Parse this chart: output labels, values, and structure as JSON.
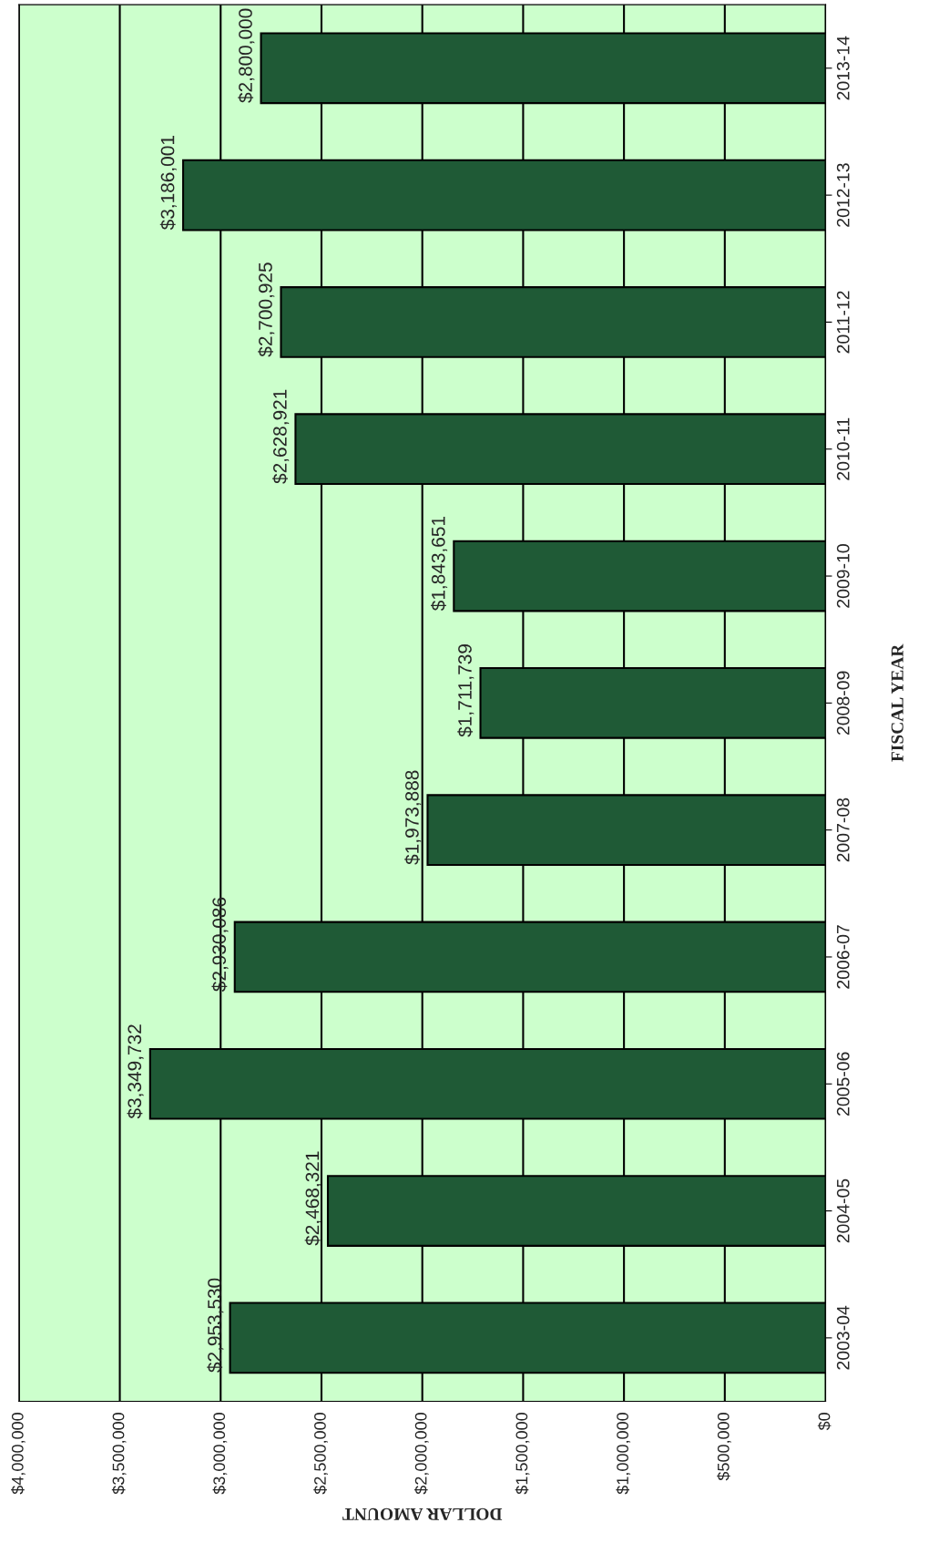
{
  "chart_data": {
    "type": "bar",
    "orientation": "horizontal",
    "xlabel": "DOLLAR AMOUNT",
    "ylabel": "FISCAL YEAR",
    "categories": [
      "2013-14",
      "2012-13",
      "2011-12",
      "2010-11",
      "2009-10",
      "2008-09",
      "2007-08",
      "2006-07",
      "2005-06",
      "2004-05",
      "2003-04"
    ],
    "values": [
      2800000,
      3186001,
      2700925,
      2628921,
      1843651,
      1711739,
      1973888,
      2930086,
      3349732,
      2468321,
      2953530
    ],
    "value_labels": [
      "$2,800,000",
      "$3,186,001",
      "$2,700,925",
      "$2,628,921",
      "$1,843,651",
      "$1,711,739",
      "$1,973,888",
      "$2,930,086",
      "$3,349,732",
      "$2,468,321",
      "$2,953,530"
    ],
    "color": "#1f5a36",
    "xlim": [
      4000000,
      0
    ],
    "xticks": [
      {
        "value": 4000000,
        "label": "$4,000,000"
      },
      {
        "value": 3500000,
        "label": "$3,500,000"
      },
      {
        "value": 3000000,
        "label": "$3,000,000"
      },
      {
        "value": 2500000,
        "label": "$2,500,000"
      },
      {
        "value": 2000000,
        "label": "$2,000,000"
      },
      {
        "value": 1500000,
        "label": "$1,500,000"
      },
      {
        "value": 1000000,
        "label": "$1,000,000"
      },
      {
        "value": 500000,
        "label": "$500,000"
      },
      {
        "value": 0,
        "label": "$0"
      }
    ],
    "grid": "x"
  }
}
